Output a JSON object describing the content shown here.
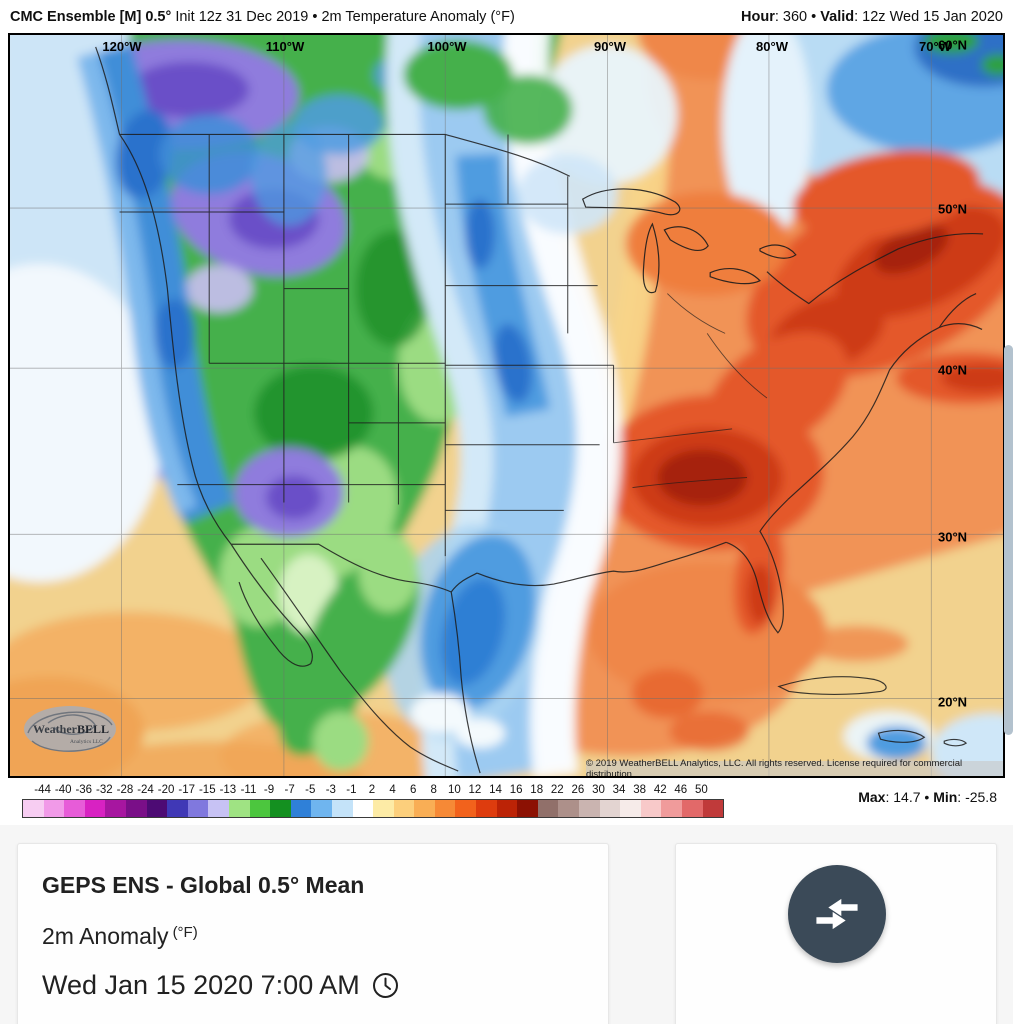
{
  "header": {
    "model": "CMC Ensemble [M] 0.5°",
    "subtitle": " Init 12z 31 Dec 2019 • 2m Temperature Anomaly (°F)",
    "hour_label": "Hour",
    "hour_rest": ": 360 • ",
    "valid_label": "Valid",
    "valid_rest": ": 12z Wed 15 Jan 2020"
  },
  "map": {
    "lon_labels": [
      "120°W",
      "110°W",
      "100°W",
      "90°W",
      "80°W",
      "70°W"
    ],
    "lat_labels": [
      "60°N",
      "50°N",
      "40°N",
      "30°N",
      "20°N"
    ],
    "copyright": "© 2019 WeatherBELL Analytics, LLC. All rights reserved. License required for commercial distribution.",
    "logo": {
      "brand_weather": "Weather",
      "brand_bell": "BELL",
      "brand_sub": "Analytics LLC"
    }
  },
  "scale": {
    "tick_labels": [
      "-44",
      "-40",
      "-36",
      "-32",
      "-28",
      "-24",
      "-20",
      "-17",
      "-15",
      "-13",
      "-11",
      "-9",
      "-7",
      "-5",
      "-3",
      "-1",
      "2",
      "4",
      "6",
      "8",
      "10",
      "12",
      "14",
      "16",
      "18",
      "22",
      "26",
      "30",
      "34",
      "38",
      "42",
      "46",
      "50"
    ],
    "colors": [
      "#f7cdf2",
      "#f19ae8",
      "#e75cd8",
      "#d822c2",
      "#a716a0",
      "#7a0f88",
      "#4d0b74",
      "#4038b6",
      "#8078de",
      "#c7c2f4",
      "#9fe383",
      "#4cc63e",
      "#149020",
      "#2f80d8",
      "#6fb5ef",
      "#c4e3f9",
      "#ffffff",
      "#fdeba6",
      "#fccf7c",
      "#f9ae55",
      "#f68936",
      "#f2621c",
      "#de3c0e",
      "#bc2306",
      "#8c1103",
      "#91706a",
      "#ad908a",
      "#cab4b0",
      "#e3d4d1",
      "#f6ebe9",
      "#f8c9c9",
      "#f09b9b",
      "#e26969",
      "#c03a3a"
    ],
    "max_label": "Max",
    "max_rest": ": 14.7 • ",
    "min_label": "Min",
    "min_rest": ": -25.8"
  },
  "panel": {
    "title": "GEPS ENS - Global 0.5° Mean",
    "variable": "2m Anomaly",
    "unit": "(°F)",
    "datetime": "Wed Jan 15 2020 7:00 AM"
  }
}
